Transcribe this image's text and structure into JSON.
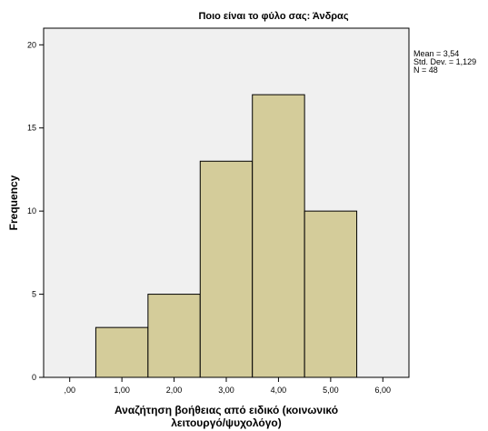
{
  "chart_data": {
    "type": "bar",
    "title": "Ποιο είναι το φύλο σας: Άνδρας",
    "xlabel_lines": [
      "Αναζήτηση βοήθειας από ειδικό (κοινωνικό",
      "λειτουργό/ψυχολόγο)"
    ],
    "ylabel": "Frequency",
    "x_ticks": [
      ",00",
      "1,00",
      "2,00",
      "3,00",
      "4,00",
      "5,00",
      "6,00"
    ],
    "y_ticks": [
      "0",
      "5",
      "10",
      "15",
      "20"
    ],
    "xlim": [
      -0.5,
      6.5
    ],
    "ylim": [
      0,
      21
    ],
    "bins": [
      {
        "x": 1,
        "value": 3
      },
      {
        "x": 2,
        "value": 5
      },
      {
        "x": 3,
        "value": 13
      },
      {
        "x": 4,
        "value": 17
      },
      {
        "x": 5,
        "value": 10
      }
    ],
    "bin_width": 1,
    "stats": [
      "Mean = 3,54",
      "Std. Dev. = 1,129",
      "N = 48"
    ],
    "colors": {
      "bar_fill": "#d4cc9a",
      "bar_stroke": "#000000",
      "plot_bg": "#f0f0f0"
    }
  }
}
